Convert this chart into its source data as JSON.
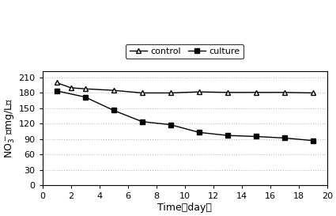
{
  "control_x": [
    1,
    2,
    3,
    5,
    7,
    9,
    11,
    13,
    15,
    17,
    19
  ],
  "control_y": [
    200,
    190,
    188,
    185,
    180,
    180,
    182,
    181,
    181,
    181,
    180
  ],
  "culture_x": [
    1,
    3,
    5,
    7,
    9,
    11,
    13,
    15,
    17,
    19
  ],
  "culture_y": [
    184,
    172,
    146,
    124,
    118,
    103,
    97,
    95,
    92,
    87
  ],
  "xlabel": "Time（day）",
  "xlim": [
    0,
    20
  ],
  "ylim": [
    0,
    222
  ],
  "yticks": [
    0,
    30,
    60,
    90,
    120,
    150,
    180,
    210
  ],
  "xticks": [
    0,
    2,
    4,
    6,
    8,
    10,
    12,
    14,
    16,
    18,
    20
  ],
  "legend_labels": [
    "control",
    "culture"
  ],
  "line_color": "#000000",
  "bg_color": "#ffffff",
  "grid_color": "#bbbbbb"
}
